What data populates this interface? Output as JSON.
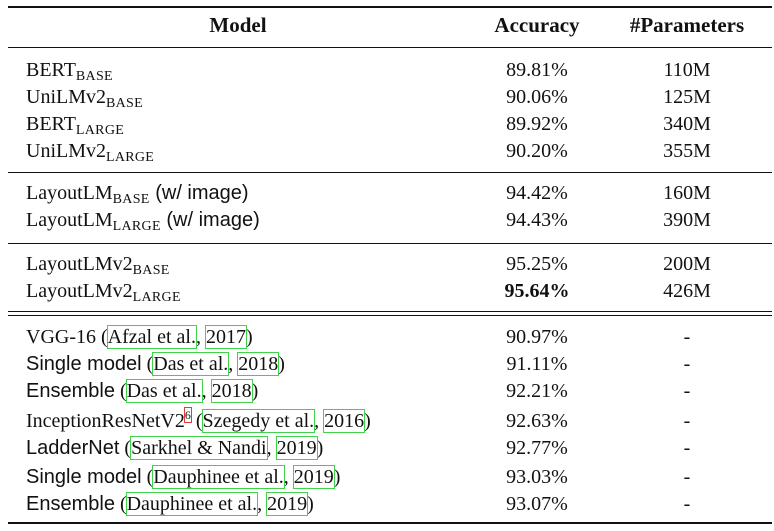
{
  "columns": {
    "model": "Model",
    "accuracy": "Accuracy",
    "params": "#Parameters"
  },
  "groups": [
    [
      {
        "name": "BERT",
        "sub": "BASE",
        "accuracy": "89.81%",
        "params": "110M"
      },
      {
        "name": "UniLMv2",
        "sub": "BASE",
        "accuracy": "90.06%",
        "params": "125M"
      },
      {
        "name": "BERT",
        "sub": "LARGE",
        "accuracy": "89.92%",
        "params": "340M"
      },
      {
        "name": "UniLMv2",
        "sub": "LARGE",
        "accuracy": "90.20%",
        "params": "355M"
      }
    ],
    [
      {
        "name": "LayoutLM",
        "sub": "BASE",
        "suffix": " (w/ image)",
        "accuracy": "94.42%",
        "params": "160M"
      },
      {
        "name": "LayoutLM",
        "sub": "LARGE",
        "suffix": " (w/ image)",
        "accuracy": "94.43%",
        "params": "390M"
      }
    ],
    [
      {
        "name": "LayoutLMv2",
        "sub": "BASE",
        "accuracy": "95.25%",
        "params": "200M"
      },
      {
        "name": "LayoutLMv2",
        "sub": "LARGE",
        "accuracy": "95.64%",
        "params": "426M",
        "bold": true
      }
    ],
    [
      {
        "name": "VGG-16",
        "cite": "Afzal et al.",
        "year": "2017",
        "accuracy": "90.97%",
        "params": "-"
      },
      {
        "name": "Single model",
        "cite": "Das et al.",
        "year": "2018",
        "accuracy": "91.11%",
        "params": "-"
      },
      {
        "name": "Ensemble",
        "cite": "Das et al.",
        "year": "2018",
        "accuracy": "92.21%",
        "params": "-"
      },
      {
        "name": "InceptionResNetV2",
        "footnote": "6",
        "cite": "Szegedy et al.",
        "year": "2016",
        "accuracy": "92.63%",
        "params": "-"
      },
      {
        "name": "LadderNet",
        "cite": "Sarkhel & Nandi",
        "year": "2019",
        "accuracy": "92.77%",
        "params": "-"
      },
      {
        "name": "Single model",
        "cite": "Dauphinee et al.",
        "year": "2019",
        "accuracy": "93.03%",
        "params": "-"
      },
      {
        "name": "Ensemble",
        "cite": "Dauphinee et al.",
        "year": "2019",
        "accuracy": "93.07%",
        "params": "-"
      }
    ]
  ]
}
